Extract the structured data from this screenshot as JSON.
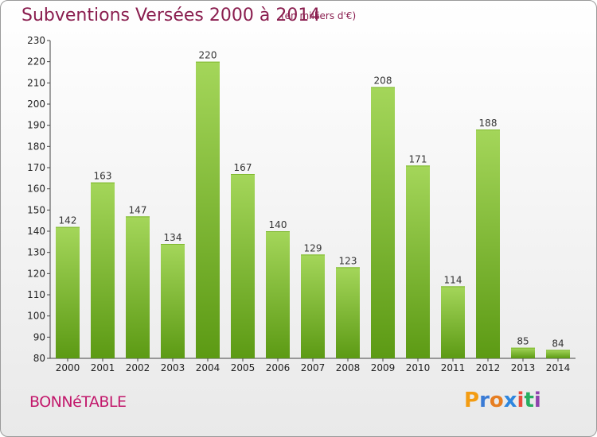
{
  "header": {
    "title": "Subventions Versées 2000 à 2014",
    "subtitle": "(en milliers d'€)"
  },
  "footer": {
    "commune": "BONNéTABLE",
    "logo": "Proxiti"
  },
  "colors": {
    "bar_light": "#a4d65a",
    "bar_dark": "#5c9a14",
    "title": "#8a1e4f",
    "commune": "#c2186b"
  },
  "chart_data": {
    "type": "bar",
    "categories": [
      "2000",
      "2001",
      "2002",
      "2003",
      "2004",
      "2005",
      "2006",
      "2007",
      "2008",
      "2009",
      "2010",
      "2011",
      "2012",
      "2013",
      "2014"
    ],
    "values": [
      142,
      163,
      147,
      134,
      220,
      167,
      140,
      129,
      123,
      208,
      171,
      114,
      188,
      85,
      84
    ],
    "ylim": [
      80,
      230
    ],
    "yticks": [
      80,
      90,
      100,
      110,
      120,
      130,
      140,
      150,
      160,
      170,
      180,
      190,
      200,
      210,
      220,
      230
    ],
    "grid": false,
    "data_labels": true
  }
}
